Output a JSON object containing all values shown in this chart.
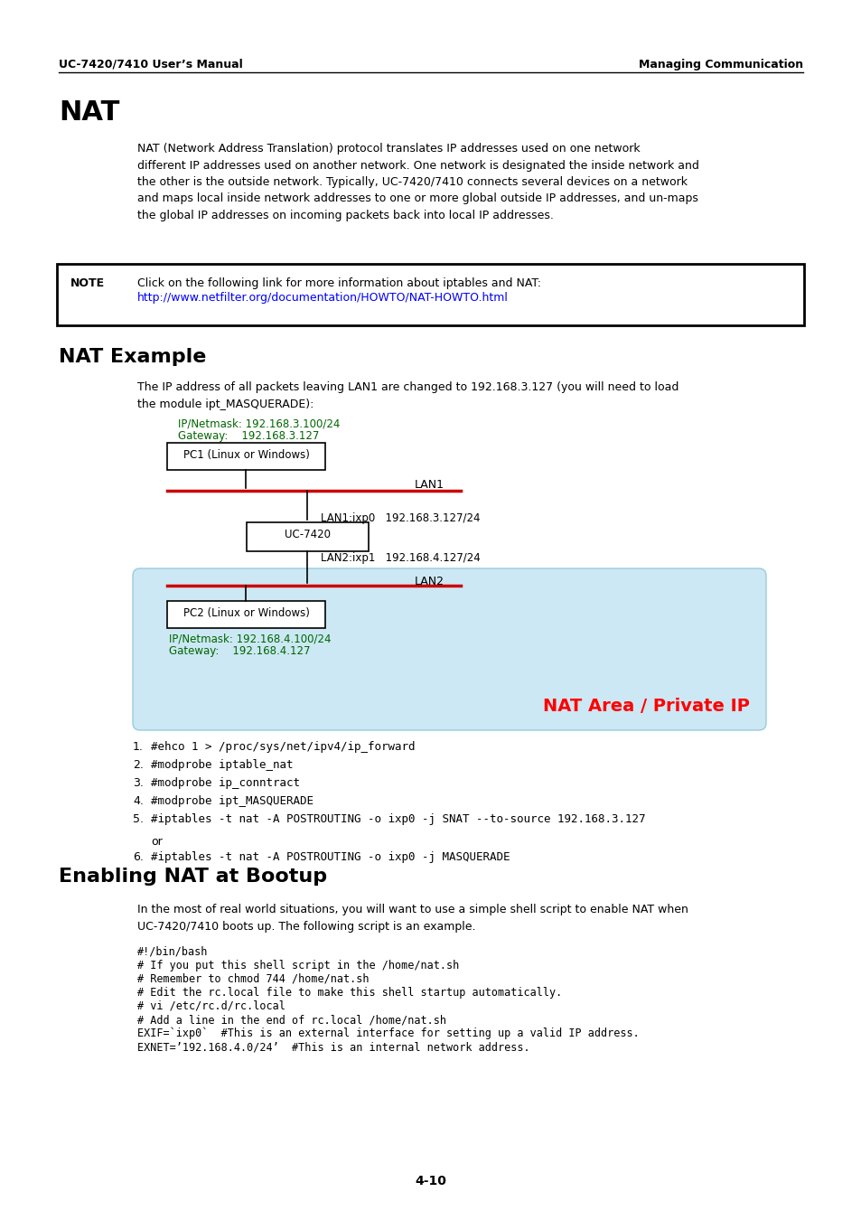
{
  "header_left": "UC-7420/7410 User’s Manual",
  "header_right": "Managing Communication",
  "title_nat": "NAT",
  "nat_body": "NAT (Network Address Translation) protocol translates IP addresses used on one network\ndifferent IP addresses used on another network. One network is designated the inside network and\nthe other is the outside network. Typically, UC-7420/7410 connects several devices on a network\nand maps local inside network addresses to one or more global outside IP addresses, and un-maps\nthe global IP addresses on incoming packets back into local IP addresses.",
  "note_label": "NOTE",
  "note_line1": "Click on the following link for more information about iptables and NAT:",
  "note_line2": "http://www.netfilter.org/documentation/HOWTO/NAT-HOWTO.html",
  "title_nat_example": "NAT Example",
  "nat_example_body": "The IP address of all packets leaving LAN1 are changed to 192.168.3.127 (you will need to load\nthe module ipt_MASQUERADE):",
  "pc1_info1": "IP/Netmask: 192.168.3.100/24",
  "pc1_info2": "Gateway:    192.168.3.127",
  "pc1_label": "PC1 (Linux or Windows)",
  "lan1_label": "LAN1",
  "lan1_ixp": "LAN1:ixp0   192.168.3.127/24",
  "uc_label": "UC-7420",
  "lan2_ixp": "LAN2:ixp1   192.168.4.127/24",
  "lan2_label": "LAN2",
  "pc2_label": "PC2 (Linux or Windows)",
  "pc2_info1": "IP/Netmask: 192.168.4.100/24",
  "pc2_info2": "Gateway:    192.168.4.127",
  "nat_area_label": "NAT Area / Private IP",
  "list_numbers": [
    "1.",
    "2.",
    "3.",
    "4.",
    "5.",
    "6."
  ],
  "list_items": [
    "#ehco 1 > /proc/sys/net/ipv4/ip_forward",
    "#modprobe iptable_nat",
    "#modprobe ip_conntract",
    "#modprobe ipt_MASQUERADE",
    "#iptables -t nat -A POSTROUTING -o ixp0 -j SNAT --to-source 192.168.3.127",
    "#iptables -t nat -A POSTROUTING -o ixp0 -j MASQUERADE"
  ],
  "title_enabling": "Enabling NAT at Bootup",
  "enabling_body": "In the most of real world situations, you will want to use a simple shell script to enable NAT when\nUC-7420/7410 boots up. The following script is an example.",
  "code_lines": [
    "#!/bin/bash",
    "# If you put this shell script in the /home/nat.sh",
    "# Remember to chmod 744 /home/nat.sh",
    "# Edit the rc.local file to make this shell startup automatically.",
    "# vi /etc/rc.d/rc.local",
    "# Add a line in the end of rc.local /home/nat.sh",
    "EXIF=`ixp0`  #This is an external interface for setting up a valid IP address.",
    "EXNET=’192.168.4.0/24’  #This is an internal network address."
  ],
  "footer": "4-10",
  "background_color": "#ffffff",
  "nat_area_bg": "#cce8f4",
  "red_line_color": "#cc0000"
}
